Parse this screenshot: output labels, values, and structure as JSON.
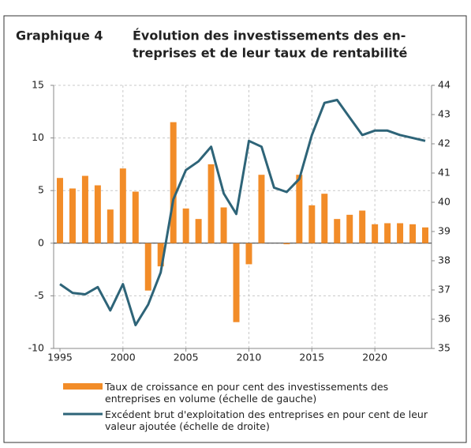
{
  "chart_data": {
    "type": "bar-line",
    "label": "Graphique 4",
    "title": [
      "Évolution des investissements des en-",
      "treprises et de leur taux de rentabilité"
    ],
    "x": [
      1995,
      1996,
      1997,
      1998,
      1999,
      2000,
      2001,
      2002,
      2003,
      2004,
      2005,
      2006,
      2007,
      2008,
      2009,
      2010,
      2011,
      2012,
      2013,
      2014,
      2015,
      2016,
      2017,
      2018,
      2019,
      2020,
      2021,
      2022,
      2023,
      2024
    ],
    "series": [
      {
        "name": "Taux de croissance en pour cent des investissements des entreprises en volume (échelle de gauche)",
        "type": "bar",
        "color": "#f28c28",
        "values": [
          6.2,
          5.2,
          6.4,
          5.5,
          3.2,
          7.1,
          4.9,
          -4.5,
          -2.2,
          11.5,
          3.3,
          2.3,
          7.5,
          3.4,
          -7.5,
          -2.0,
          6.5,
          0,
          -0.1,
          6.5,
          3.6,
          4.7,
          2.3,
          2.7,
          3.1,
          1.8,
          1.9,
          1.9,
          1.8,
          1.5
        ]
      },
      {
        "name": "Excédent brut d'exploitation des entreprises en pour cent de leur valeur ajoutée (échelle de droite)",
        "type": "line",
        "axis": "y2",
        "color": "#2e6478",
        "values": [
          37.2,
          36.9,
          36.85,
          37.1,
          36.3,
          37.2,
          35.8,
          36.5,
          37.6,
          40.1,
          41.1,
          41.4,
          41.9,
          40.3,
          39.6,
          42.1,
          41.9,
          40.5,
          40.35,
          40.8,
          42.3,
          43.4,
          43.5,
          42.9,
          42.3,
          42.45,
          42.45,
          42.3,
          42.2,
          42.1
        ]
      }
    ],
    "xlim": [
      1994.5,
      2024.5
    ],
    "xticks": [
      1995,
      2000,
      2005,
      2010,
      2015,
      2020
    ],
    "ylim": [
      -10,
      15
    ],
    "yticks": [
      -10,
      -5,
      0,
      5,
      10,
      15
    ],
    "y2lim": [
      35,
      44
    ],
    "y2ticks": [
      35,
      36,
      37,
      38,
      39,
      40,
      41,
      42,
      43,
      44
    ],
    "grid": true
  }
}
